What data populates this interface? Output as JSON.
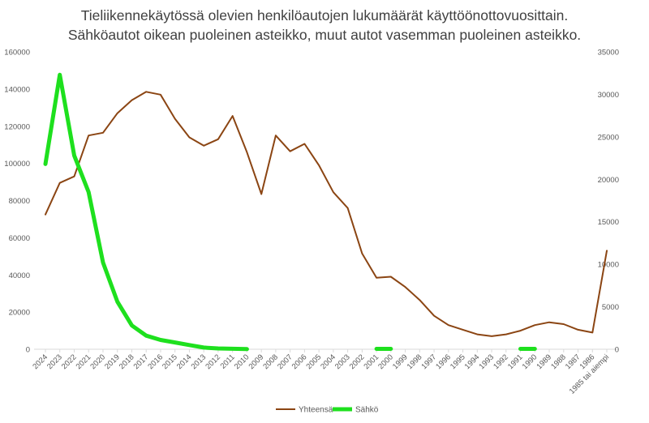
{
  "chart_data": {
    "type": "line",
    "title": [
      "Tieliikennekäytössä olevien henkilöautojen lukumäärät käyttöönottovuosittain.",
      "Sähköautot oikean puoleinen asteikko, muut autot vasemman puoleinen asteikko."
    ],
    "categories": [
      "2024",
      "2023",
      "2022",
      "2021",
      "2020",
      "2019",
      "2018",
      "2017",
      "2016",
      "2015",
      "2014",
      "2013",
      "2012",
      "2011",
      "2010",
      "2009",
      "2008",
      "2007",
      "2006",
      "2005",
      "2004",
      "2003",
      "2002",
      "2001",
      "2000",
      "1999",
      "1998",
      "1997",
      "1996",
      "1995",
      "1994",
      "1993",
      "1992",
      "1991",
      "1990",
      "1989",
      "1988",
      "1987",
      "1986",
      "1985 tai aiempi"
    ],
    "y_left": {
      "min": 0,
      "max": 160000,
      "ticks": [
        "0",
        "20000",
        "40000",
        "60000",
        "80000",
        "100000",
        "120000",
        "140000",
        "160000"
      ]
    },
    "y_right": {
      "min": 0,
      "max": 35000,
      "ticks": [
        "0",
        "5000",
        "10000",
        "15000",
        "20000",
        "25000",
        "30000",
        "35000"
      ]
    },
    "grid": false,
    "legend_position": "bottom",
    "series": [
      {
        "name": "Yhteensä",
        "axis": "left",
        "color": "#8B4513",
        "values": [
          72500,
          89500,
          93000,
          115000,
          116500,
          127000,
          134000,
          138500,
          137000,
          124000,
          114000,
          109500,
          113000,
          125500,
          106000,
          83500,
          115000,
          106500,
          110500,
          99000,
          84500,
          76000,
          51500,
          38500,
          39000,
          33500,
          26500,
          18000,
          13000,
          10500,
          8000,
          7000,
          8000,
          10000,
          13000,
          14500,
          13500,
          10500,
          9000,
          53000
        ]
      },
      {
        "name": "Sähkö",
        "axis": "right",
        "color": "#1EE01E",
        "values": [
          21800,
          32300,
          22800,
          18500,
          10200,
          5600,
          2800,
          1600,
          1100,
          800,
          500,
          200,
          100,
          60,
          20,
          null,
          null,
          null,
          null,
          null,
          null,
          null,
          null,
          50,
          50,
          null,
          null,
          null,
          null,
          null,
          null,
          null,
          null,
          50,
          50,
          null,
          null,
          null,
          null,
          null
        ]
      }
    ]
  }
}
